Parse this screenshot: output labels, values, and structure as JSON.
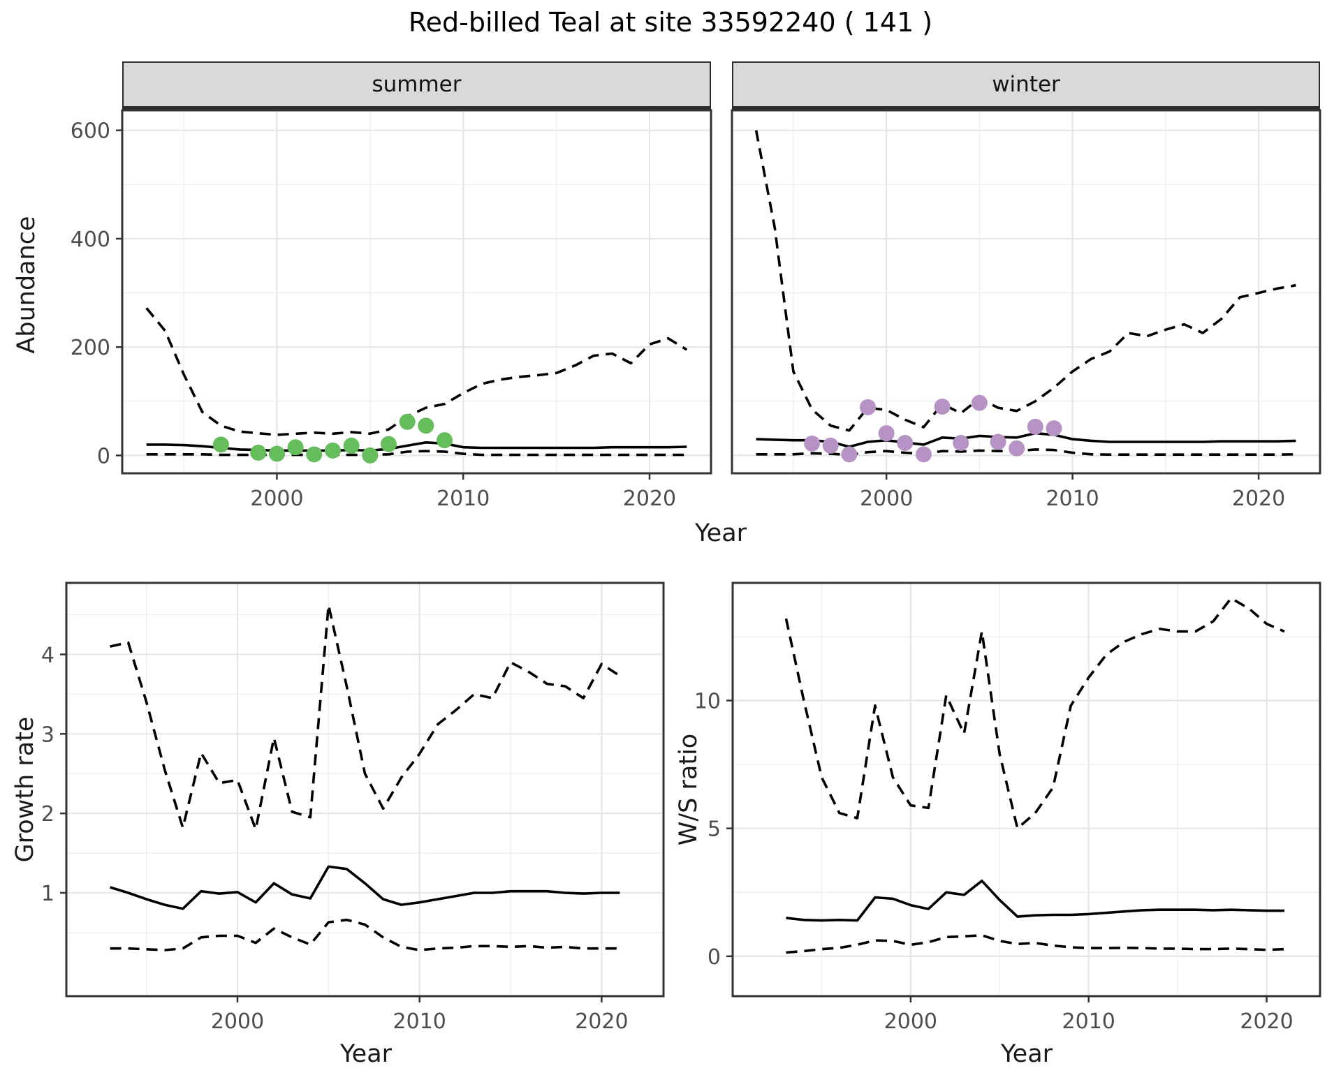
{
  "title": "Red-billed Teal at site 33592240 ( 141 )",
  "facets": {
    "summer": "summer",
    "winter": "winter"
  },
  "axes_titles": {
    "abundance": "Abundance",
    "year": "Year",
    "growth": "Growth rate",
    "ws": "W/S ratio"
  },
  "colors": {
    "summer_points": "#66bd5b",
    "winter_points": "#b793c5",
    "line": "#000000",
    "panel_border": "#333333",
    "grid_major": "#e6e6e6",
    "grid_minor": "#f0f0f0",
    "strip_bg": "#d9d9d9",
    "tick_label": "#4d4d4d",
    "axis_title": "#1a1a1a"
  },
  "chart_data": [
    {
      "id": "abundance_summer",
      "type": "line",
      "facet_label": "summer",
      "ylabel": "Abundance",
      "xlabel": "Year",
      "xlim": [
        1991.7,
        2023.3
      ],
      "ylim": [
        -33,
        637
      ],
      "xaxis": {
        "ticks": [
          2000,
          2010,
          2020
        ],
        "labels": [
          "2000",
          "2010",
          "2020"
        ],
        "minor": [
          1995,
          2005,
          2015
        ]
      },
      "yaxis": {
        "ticks": [
          0,
          200,
          400,
          600
        ],
        "labels": [
          "0",
          "200",
          "400",
          "600"
        ],
        "minor": [
          100,
          300,
          500
        ],
        "show_labels": true
      },
      "years": [
        1993,
        1994,
        1995,
        1996,
        1997,
        1998,
        1999,
        2000,
        2001,
        2002,
        2003,
        2004,
        2005,
        2006,
        2007,
        2008,
        2009,
        2010,
        2011,
        2012,
        2013,
        2014,
        2015,
        2016,
        2017,
        2018,
        2019,
        2020,
        2021,
        2022
      ],
      "series": [
        {
          "name": "upper-95ci",
          "style": "dashed",
          "y": [
            272,
            230,
            150,
            80,
            55,
            44,
            41,
            38,
            40,
            42,
            40,
            43,
            40,
            48,
            72,
            88,
            95,
            115,
            132,
            140,
            145,
            148,
            152,
            166,
            184,
            188,
            170,
            205,
            216,
            195
          ]
        },
        {
          "name": "median",
          "style": "solid",
          "y": [
            20,
            20,
            19,
            17,
            14,
            11,
            10,
            9,
            9,
            9,
            9,
            10,
            9,
            12,
            18,
            24,
            22,
            15,
            14,
            14,
            14,
            14,
            14,
            14,
            14,
            15,
            15,
            15,
            15,
            16
          ]
        },
        {
          "name": "lower-95ci",
          "style": "dashed",
          "y": [
            2,
            2,
            2,
            2,
            1,
            1,
            1,
            1,
            1,
            1,
            1,
            1,
            1,
            2,
            7,
            8,
            7,
            3,
            1,
            1,
            1,
            1,
            1,
            1,
            1,
            1,
            1,
            1,
            1,
            1
          ]
        },
        {
          "name": "observed-counts",
          "style": "points",
          "color": "summer_points",
          "x": [
            1997,
            1999,
            2000,
            2001,
            2002,
            2003,
            2004,
            2005,
            2006,
            2007,
            2008,
            2009
          ],
          "y": [
            20,
            5,
            3,
            15,
            2,
            9,
            18,
            0,
            21,
            62,
            55,
            28
          ]
        }
      ]
    },
    {
      "id": "abundance_winter",
      "type": "line",
      "facet_label": "winter",
      "ylabel": "Abundance",
      "xlabel": "Year",
      "xlim": [
        1991.7,
        2023.3
      ],
      "ylim": [
        -33,
        637
      ],
      "xaxis": {
        "ticks": [
          2000,
          2010,
          2020
        ],
        "labels": [
          "2000",
          "2010",
          "2020"
        ],
        "minor": [
          1995,
          2005,
          2015
        ]
      },
      "yaxis": {
        "ticks": [
          0,
          200,
          400,
          600
        ],
        "labels": [
          "0",
          "200",
          "400",
          "600"
        ],
        "minor": [
          100,
          300,
          500
        ],
        "show_labels": false
      },
      "years": [
        1993,
        1994,
        1995,
        1996,
        1997,
        1998,
        1999,
        2000,
        2001,
        2002,
        2003,
        2004,
        2005,
        2006,
        2007,
        2008,
        2009,
        2010,
        2011,
        2012,
        2013,
        2014,
        2015,
        2016,
        2017,
        2018,
        2019,
        2020,
        2021,
        2022
      ],
      "series": [
        {
          "name": "upper-95ci",
          "style": "dashed",
          "y": [
            600,
            420,
            155,
            85,
            55,
            46,
            88,
            84,
            66,
            52,
            95,
            78,
            105,
            88,
            82,
            100,
            125,
            155,
            178,
            192,
            226,
            220,
            232,
            242,
            226,
            252,
            292,
            300,
            308,
            314
          ]
        },
        {
          "name": "median",
          "style": "solid",
          "y": [
            30,
            29,
            28,
            28,
            25,
            16,
            25,
            28,
            24,
            20,
            33,
            31,
            36,
            34,
            33,
            41,
            38,
            30,
            27,
            25,
            25,
            25,
            25,
            25,
            25,
            26,
            26,
            26,
            26,
            27
          ]
        },
        {
          "name": "lower-95ci",
          "style": "dashed",
          "y": [
            2,
            2,
            2,
            4,
            3,
            1,
            6,
            8,
            5,
            3,
            8,
            7,
            9,
            8,
            8,
            11,
            10,
            5,
            2,
            1.5,
            1.5,
            1.5,
            1.5,
            1.5,
            1.5,
            1.5,
            1.5,
            1.5,
            1.5,
            2
          ]
        },
        {
          "name": "observed-counts",
          "style": "points",
          "color": "winter_points",
          "x": [
            1996,
            1997,
            1998,
            1999,
            2000,
            2001,
            2002,
            2003,
            2004,
            2005,
            2006,
            2007,
            2008,
            2009
          ],
          "y": [
            22,
            18,
            2,
            89,
            41,
            23,
            2,
            90,
            23,
            97,
            25,
            13,
            53,
            50
          ]
        }
      ]
    },
    {
      "id": "growth_rate",
      "type": "line",
      "ylabel": "Growth rate",
      "xlabel": "Year",
      "xlim": [
        1990.6,
        2023.4
      ],
      "ylim": [
        -0.3,
        4.9
      ],
      "xaxis": {
        "ticks": [
          2000,
          2010,
          2020
        ],
        "labels": [
          "2000",
          "2010",
          "2020"
        ],
        "minor": [
          1995,
          2005,
          2015
        ]
      },
      "yaxis": {
        "ticks": [
          1,
          2,
          3,
          4
        ],
        "labels": [
          "1",
          "2",
          "3",
          "4"
        ],
        "minor": [
          0.5,
          1.5,
          2.5,
          3.5,
          4.5
        ],
        "show_labels": true
      },
      "years": [
        1993,
        1994,
        1995,
        1996,
        1997,
        1998,
        1999,
        2000,
        2001,
        2002,
        2003,
        2004,
        2005,
        2006,
        2007,
        2008,
        2009,
        2010,
        2011,
        2012,
        2013,
        2014,
        2015,
        2016,
        2017,
        2018,
        2019,
        2020,
        2021
      ],
      "series": [
        {
          "name": "upper-95ci",
          "style": "dashed",
          "y": [
            4.1,
            4.15,
            3.4,
            2.55,
            1.82,
            2.76,
            2.38,
            2.42,
            1.8,
            2.95,
            2.02,
            1.95,
            4.62,
            3.6,
            2.5,
            2.06,
            2.45,
            2.75,
            3.12,
            3.3,
            3.5,
            3.45,
            3.9,
            3.78,
            3.63,
            3.6,
            3.45,
            3.88,
            3.73
          ]
        },
        {
          "name": "median",
          "style": "solid",
          "y": [
            1.07,
            1.0,
            0.92,
            0.85,
            0.8,
            1.02,
            0.99,
            1.01,
            0.88,
            1.12,
            0.98,
            0.93,
            1.33,
            1.3,
            1.12,
            0.92,
            0.85,
            0.88,
            0.92,
            0.96,
            1.0,
            1.0,
            1.02,
            1.02,
            1.02,
            1.0,
            0.99,
            1.0,
            1.0
          ]
        },
        {
          "name": "lower-95ci",
          "style": "dashed",
          "y": [
            0.3,
            0.3,
            0.29,
            0.28,
            0.3,
            0.44,
            0.46,
            0.46,
            0.37,
            0.55,
            0.44,
            0.35,
            0.63,
            0.66,
            0.6,
            0.44,
            0.32,
            0.28,
            0.3,
            0.31,
            0.33,
            0.33,
            0.32,
            0.33,
            0.31,
            0.32,
            0.3,
            0.3,
            0.3
          ]
        }
      ]
    },
    {
      "id": "ws_ratio",
      "type": "line",
      "ylabel": "W/S ratio",
      "xlabel": "Year",
      "xlim": [
        1990.0,
        2023.0
      ],
      "ylim": [
        -1.56,
        14.6
      ],
      "xaxis": {
        "ticks": [
          2000,
          2010,
          2020
        ],
        "labels": [
          "2000",
          "2010",
          "2020"
        ],
        "minor": [
          1995,
          2005,
          2015
        ]
      },
      "yaxis": {
        "ticks": [
          0,
          5,
          10
        ],
        "labels": [
          "0",
          "5",
          "10"
        ],
        "minor": [
          2.5,
          7.5,
          12.5
        ],
        "show_labels": true
      },
      "years": [
        1993,
        1994,
        1995,
        1996,
        1997,
        1998,
        1999,
        2000,
        2001,
        2002,
        2003,
        2004,
        2005,
        2006,
        2007,
        2008,
        2009,
        2010,
        2011,
        2012,
        2013,
        2014,
        2015,
        2016,
        2017,
        2018,
        2019,
        2020,
        2021
      ],
      "series": [
        {
          "name": "upper-95ci",
          "style": "dashed",
          "y": [
            13.2,
            10.0,
            7.0,
            5.6,
            5.4,
            9.8,
            7.0,
            5.9,
            5.8,
            10.2,
            8.7,
            12.7,
            7.9,
            5.0,
            5.6,
            6.6,
            9.8,
            10.9,
            11.8,
            12.3,
            12.6,
            12.8,
            12.7,
            12.7,
            13.1,
            14.0,
            13.6,
            13.0,
            12.7
          ]
        },
        {
          "name": "median",
          "style": "solid",
          "y": [
            1.5,
            1.42,
            1.4,
            1.42,
            1.4,
            2.3,
            2.25,
            2.0,
            1.85,
            2.5,
            2.4,
            2.95,
            2.2,
            1.55,
            1.6,
            1.62,
            1.62,
            1.65,
            1.7,
            1.75,
            1.8,
            1.82,
            1.82,
            1.82,
            1.8,
            1.82,
            1.8,
            1.78,
            1.78
          ]
        },
        {
          "name": "lower-95ci",
          "style": "dashed",
          "y": [
            0.15,
            0.2,
            0.28,
            0.33,
            0.45,
            0.62,
            0.6,
            0.45,
            0.55,
            0.75,
            0.78,
            0.82,
            0.6,
            0.48,
            0.52,
            0.42,
            0.35,
            0.32,
            0.32,
            0.33,
            0.32,
            0.3,
            0.3,
            0.28,
            0.28,
            0.3,
            0.28,
            0.25,
            0.28
          ]
        }
      ]
    }
  ]
}
